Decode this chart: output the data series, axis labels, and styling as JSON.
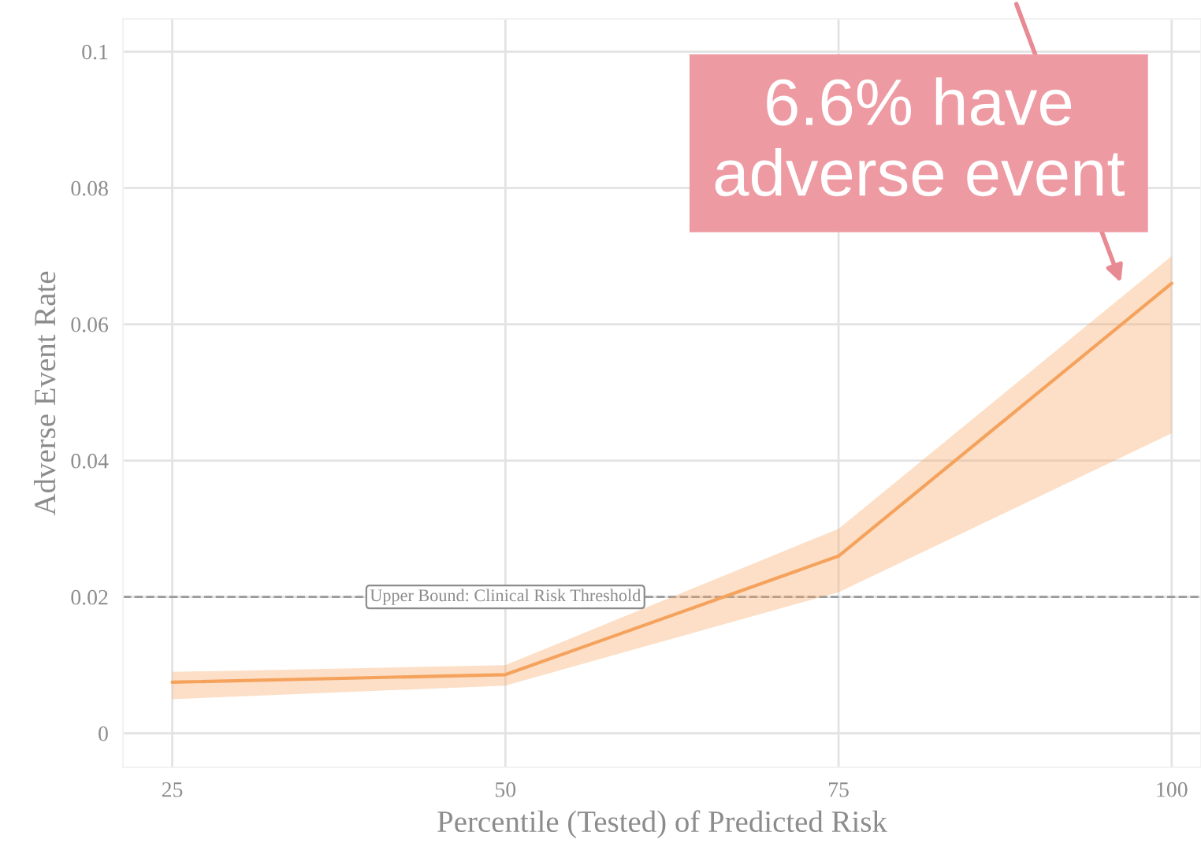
{
  "chart_data": {
    "type": "line",
    "xlabel": "Percentile (Tested) of Predicted Risk",
    "ylabel": "Adverse Event Rate",
    "x": [
      25,
      50,
      75,
      100
    ],
    "series": [
      {
        "color": "#f5a25d",
        "values": [
          0.0075,
          0.0086,
          0.026,
          0.066
        ],
        "lower": [
          0.005,
          0.007,
          0.0207,
          0.044
        ],
        "upper": [
          0.009,
          0.01,
          0.03,
          0.07
        ]
      }
    ],
    "xlim": [
      21.3,
      102.2
    ],
    "ylim": [
      -0.005,
      0.1048
    ],
    "xticks": [
      25,
      50,
      75,
      100
    ],
    "yticks": [
      0,
      0.02,
      0.04,
      0.06,
      0.08,
      0.1
    ],
    "grid": true,
    "ref_lines": [
      {
        "axis": "y",
        "value": 0.02,
        "label": "Upper Bound: Clinical Risk Threshold",
        "color": "#9a9a9a",
        "line_style": "dashed"
      }
    ],
    "annotations": [
      {
        "text": "6.6% have\nadverse event",
        "x": 96.3,
        "y": 0.0655
      }
    ]
  }
}
